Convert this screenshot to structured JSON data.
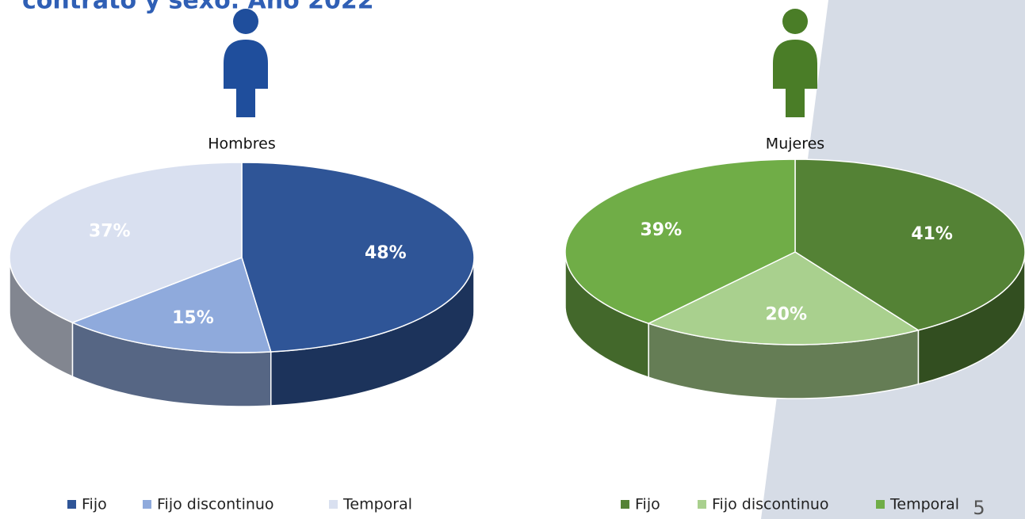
{
  "slide": {
    "title": "contrato y sexo. Año 2022",
    "page_number": "5"
  },
  "chart_data": [
    {
      "type": "pie",
      "title": "Hombres",
      "categories": [
        "Fijo",
        "Fijo discontinuo",
        "Temporal"
      ],
      "values": [
        48,
        15,
        37
      ],
      "value_labels": [
        "48%",
        "15%",
        "37%"
      ],
      "colors": [
        "#2f5597",
        "#8faadc",
        "#d9e0f0"
      ],
      "legend": "bottom"
    },
    {
      "type": "pie",
      "title": "Mujeres",
      "categories": [
        "Fijo",
        "Fijo discontinuo",
        "Temporal"
      ],
      "values": [
        41,
        20,
        39
      ],
      "value_labels": [
        "41%",
        "20%",
        "39%"
      ],
      "colors": [
        "#548235",
        "#a9d08e",
        "#70ad47"
      ],
      "legend": "bottom"
    }
  ]
}
